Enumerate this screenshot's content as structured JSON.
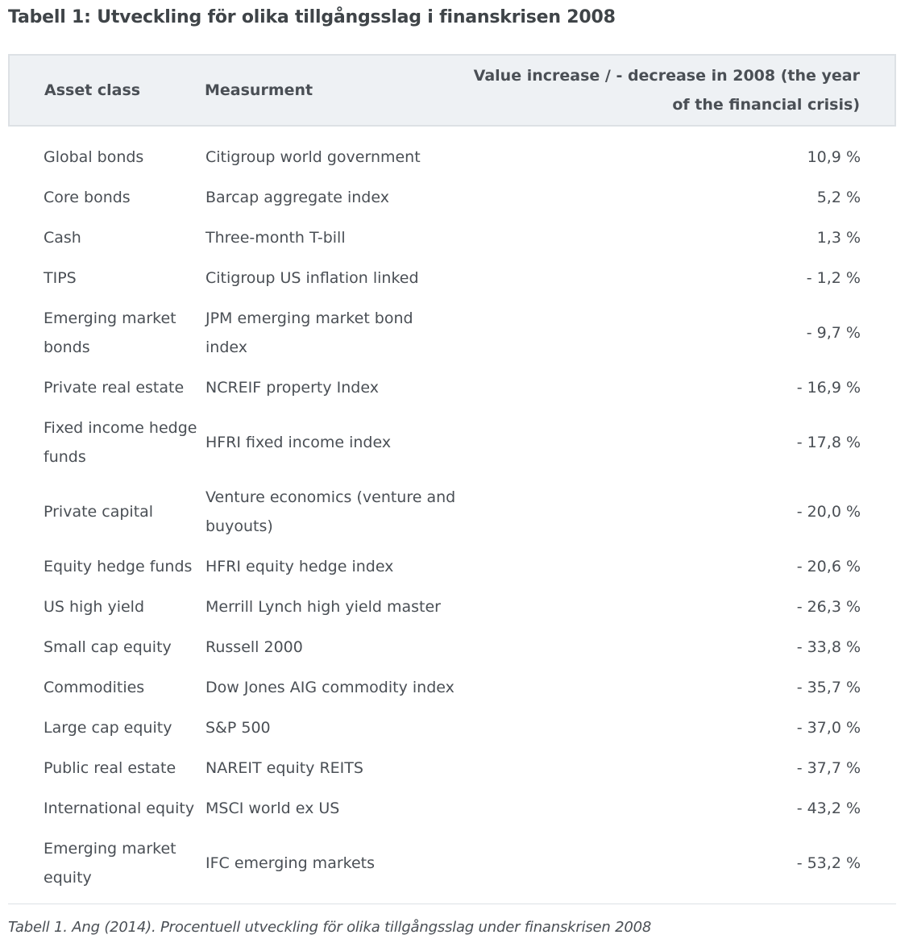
{
  "title": "Tabell 1: Utveckling för olika tillgångsslag i finanskrisen 2008",
  "table": {
    "headers": [
      "Asset class",
      "Measurment",
      "Value increase / - decrease in 2008 (the year of the financial crisis)"
    ],
    "rows": [
      [
        "Global bonds",
        "Citigroup world government",
        "10,9 %"
      ],
      [
        "Core bonds",
        "Barcap aggregate index",
        "5,2 %"
      ],
      [
        "Cash",
        "Three-month T-bill",
        "1,3 %"
      ],
      [
        "TIPS",
        "Citigroup US inflation linked",
        "- 1,2 %"
      ],
      [
        "Emerging market bonds",
        "JPM emerging market bond index",
        "- 9,7 %"
      ],
      [
        "Private real estate",
        "NCREIF property Index",
        "- 16,9 %"
      ],
      [
        "Fixed income hedge funds",
        "HFRI fixed income index",
        "- 17,8 %"
      ],
      [
        "Private capital",
        "Venture economics (venture and buyouts)",
        "- 20,0 %"
      ],
      [
        "Equity hedge funds",
        "HFRI equity hedge index",
        "- 20,6 %"
      ],
      [
        "US high yield",
        "Merrill Lynch high yield master",
        "- 26,3 %"
      ],
      [
        "Small cap equity",
        "Russell 2000",
        "- 33,8 %"
      ],
      [
        "Commodities",
        "Dow Jones AIG commodity index",
        "- 35,7 %"
      ],
      [
        "Large cap equity",
        "S&P 500",
        "- 37,0 %"
      ],
      [
        "Public real estate",
        "NAREIT equity REITS",
        "- 37,7 %"
      ],
      [
        "International equity",
        "MSCI world ex US",
        "- 43,2 %"
      ],
      [
        "Emerging market equity",
        "IFC emerging markets",
        "- 53,2 %"
      ]
    ]
  },
  "caption": "Tabell 1. Ang (2014). Procentuell utveckling för olika tillgångsslag under finanskrisen 2008"
}
